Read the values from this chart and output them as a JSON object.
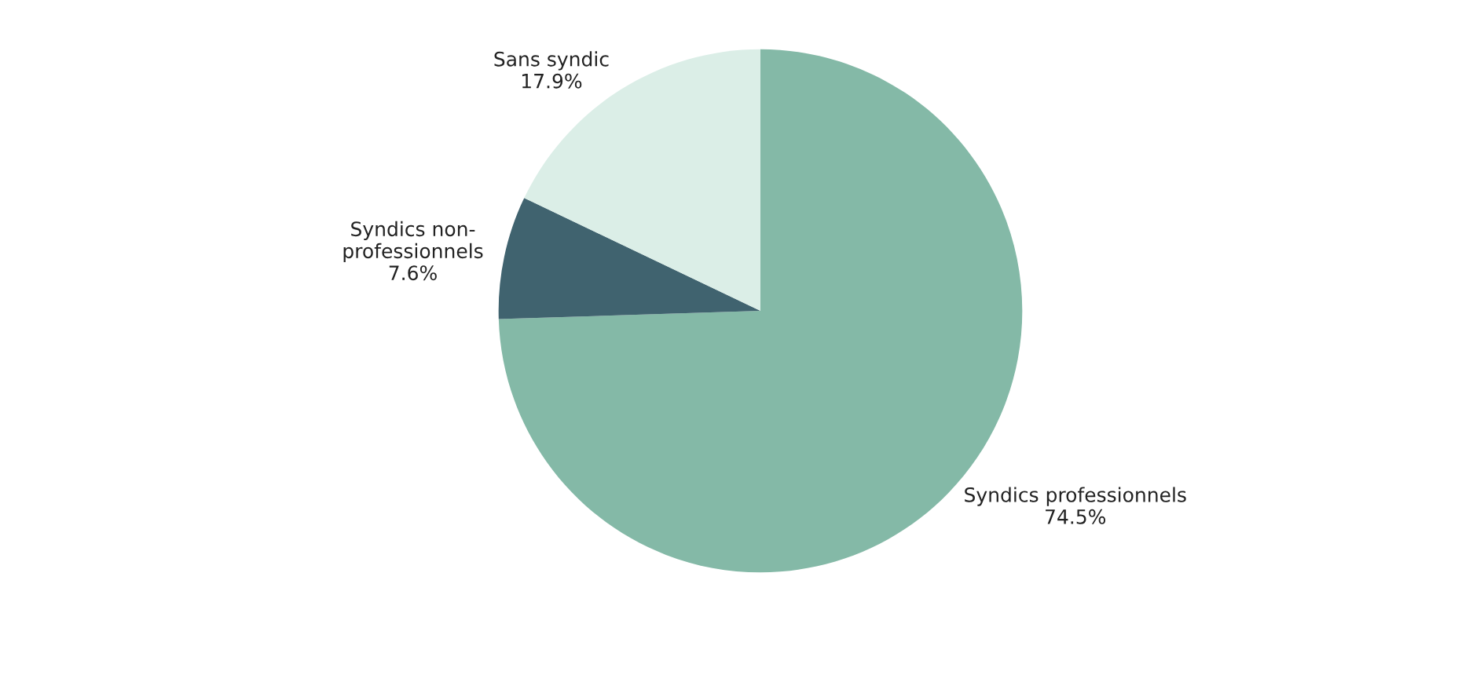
{
  "chart_data": {
    "type": "pie",
    "categories": [
      "Syndics professionnels",
      "Syndics non-professionnels",
      "Sans syndic"
    ],
    "values": [
      74.5,
      7.6,
      17.9
    ],
    "value_labels": [
      "74.5%",
      "7.6%",
      "17.9%"
    ],
    "colors": [
      "#84b9a7",
      "#40636f",
      "#dbeee7"
    ]
  }
}
